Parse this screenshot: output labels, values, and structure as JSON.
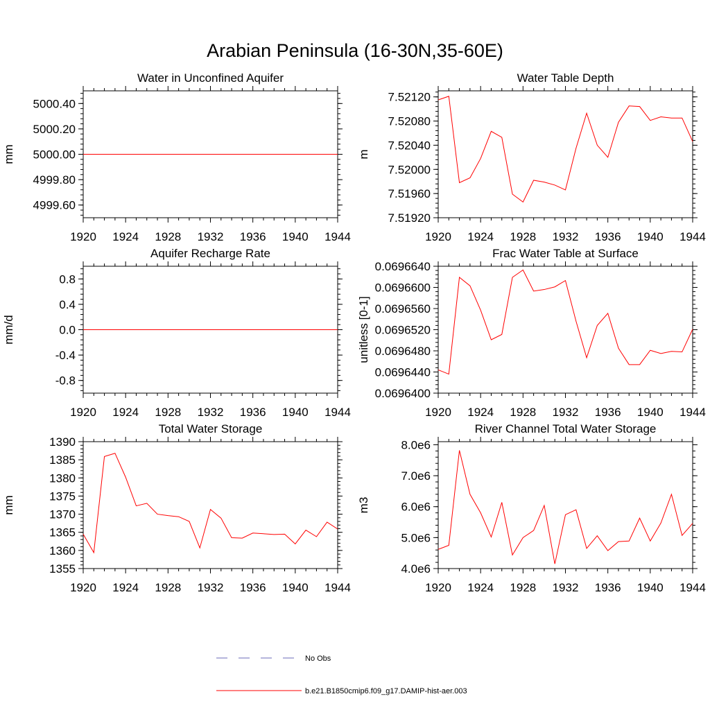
{
  "figure": {
    "title": "Arabian Peninsula (16-30N,35-60E)",
    "series_color": "#ff0000",
    "obs_color": "#6a6ab8"
  },
  "legend": {
    "obs_label": "No Obs",
    "model_label": "b.e21.B1850cmip6.f09_g17.DAMIP-hist-aer.003"
  },
  "chart_data": [
    {
      "type": "line",
      "title": "Water in Unconfined Aquifer",
      "ylabel": "mm",
      "xlim": [
        1920,
        1944
      ],
      "xticks": [
        1920,
        1924,
        1928,
        1932,
        1936,
        1940,
        1944
      ],
      "ylim": [
        4999.5,
        5000.5
      ],
      "yticks": [
        4999.6,
        4999.8,
        5000.0,
        5000.2,
        5000.4
      ],
      "ytick_labels": [
        "4999.60",
        "4999.80",
        "5000.00",
        "5000.20",
        "5000.40"
      ],
      "x": [
        1920,
        1921,
        1922,
        1923,
        1924,
        1925,
        1926,
        1927,
        1928,
        1929,
        1930,
        1931,
        1932,
        1933,
        1934,
        1935,
        1936,
        1937,
        1938,
        1939,
        1940,
        1941,
        1942,
        1943,
        1944
      ],
      "values": [
        5000.0,
        5000.0,
        5000.0,
        5000.0,
        5000.0,
        5000.0,
        5000.0,
        5000.0,
        5000.0,
        5000.0,
        5000.0,
        5000.0,
        5000.0,
        5000.0,
        5000.0,
        5000.0,
        5000.0,
        5000.0,
        5000.0,
        5000.0,
        5000.0,
        5000.0,
        5000.0,
        5000.0,
        5000.0
      ]
    },
    {
      "type": "line",
      "title": "Water Table Depth",
      "ylabel": "m",
      "xlim": [
        1920,
        1944
      ],
      "xticks": [
        1920,
        1924,
        1928,
        1932,
        1936,
        1940,
        1944
      ],
      "ylim": [
        7.5192,
        7.5213
      ],
      "yticks": [
        7.5192,
        7.5196,
        7.52,
        7.5204,
        7.5208,
        7.5212
      ],
      "ytick_labels": [
        "7.51920",
        "7.51960",
        "7.52000",
        "7.52040",
        "7.52080",
        "7.52120"
      ],
      "x": [
        1920,
        1921,
        1922,
        1923,
        1924,
        1925,
        1926,
        1927,
        1928,
        1929,
        1930,
        1931,
        1932,
        1933,
        1934,
        1935,
        1936,
        1937,
        1938,
        1939,
        1940,
        1941,
        1942,
        1943,
        1944
      ],
      "values": [
        7.52115,
        7.52121,
        7.51978,
        7.51986,
        7.52018,
        7.52063,
        7.52053,
        7.51959,
        7.51946,
        7.51982,
        7.51979,
        7.51974,
        7.51966,
        7.52035,
        7.52093,
        7.5204,
        7.5202,
        7.52078,
        7.52105,
        7.52104,
        7.52081,
        7.52087,
        7.52085,
        7.52085,
        7.52046
      ]
    },
    {
      "type": "line",
      "title": "Aquifer Recharge Rate",
      "ylabel": "mm/d",
      "xlim": [
        1920,
        1944
      ],
      "xticks": [
        1920,
        1924,
        1928,
        1932,
        1936,
        1940,
        1944
      ],
      "ylim": [
        -1.0,
        1.0
      ],
      "yticks": [
        -0.8,
        -0.4,
        0.0,
        0.4,
        0.8
      ],
      "ytick_labels": [
        "-0.8",
        "-0.4",
        "0.0",
        "0.4",
        "0.8"
      ],
      "x": [
        1920,
        1921,
        1922,
        1923,
        1924,
        1925,
        1926,
        1927,
        1928,
        1929,
        1930,
        1931,
        1932,
        1933,
        1934,
        1935,
        1936,
        1937,
        1938,
        1939,
        1940,
        1941,
        1942,
        1943,
        1944
      ],
      "values": [
        0,
        0,
        0,
        0,
        0,
        0,
        0,
        0,
        0,
        0,
        0,
        0,
        0,
        0,
        0,
        0,
        0,
        0,
        0,
        0,
        0,
        0,
        0,
        0,
        0
      ]
    },
    {
      "type": "line",
      "title": "Frac Water Table at Surface",
      "ylabel": "unitless [0-1]",
      "xlim": [
        1920,
        1944
      ],
      "xticks": [
        1920,
        1924,
        1928,
        1932,
        1936,
        1940,
        1944
      ],
      "ylim": [
        0.06964,
        0.069664
      ],
      "yticks": [
        0.06964,
        0.069644,
        0.069648,
        0.069652,
        0.069656,
        0.06966,
        0.069664
      ],
      "ytick_labels": [
        "0.0696400",
        "0.0696440",
        "0.0696480",
        "0.0696520",
        "0.0696560",
        "0.0696600",
        "0.0696640"
      ],
      "x": [
        1920,
        1921,
        1922,
        1923,
        1924,
        1925,
        1926,
        1927,
        1928,
        1929,
        1930,
        1931,
        1932,
        1933,
        1934,
        1935,
        1936,
        1937,
        1938,
        1939,
        1940,
        1941,
        1942,
        1943,
        1944
      ],
      "values": [
        0.0696444,
        0.0696436,
        0.0696619,
        0.0696603,
        0.0696557,
        0.0696501,
        0.0696511,
        0.0696619,
        0.0696633,
        0.0696593,
        0.0696596,
        0.0696601,
        0.0696613,
        0.0696536,
        0.0696467,
        0.0696528,
        0.0696551,
        0.0696485,
        0.0696454,
        0.0696454,
        0.0696481,
        0.0696475,
        0.0696479,
        0.0696478,
        0.0696521
      ]
    },
    {
      "type": "line",
      "title": "Total Water Storage",
      "ylabel": "mm",
      "xlim": [
        1920,
        1944
      ],
      "xticks": [
        1920,
        1924,
        1928,
        1932,
        1936,
        1940,
        1944
      ],
      "ylim": [
        1355,
        1390
      ],
      "yticks": [
        1355,
        1360,
        1365,
        1370,
        1375,
        1380,
        1385,
        1390
      ],
      "ytick_labels": [
        "1355",
        "1360",
        "1365",
        "1370",
        "1375",
        "1380",
        "1385",
        "1390"
      ],
      "x": [
        1920,
        1921,
        1922,
        1923,
        1924,
        1925,
        1926,
        1927,
        1928,
        1929,
        1930,
        1931,
        1932,
        1933,
        1934,
        1935,
        1936,
        1937,
        1938,
        1939,
        1940,
        1941,
        1942,
        1943,
        1944
      ],
      "values": [
        1364.5,
        1359.4,
        1385.9,
        1386.8,
        1380.2,
        1372.3,
        1373.0,
        1370.0,
        1369.6,
        1369.3,
        1368.0,
        1360.7,
        1371.3,
        1368.9,
        1363.5,
        1363.4,
        1364.8,
        1364.6,
        1364.4,
        1364.5,
        1361.8,
        1365.6,
        1363.8,
        1367.8,
        1365.9
      ]
    },
    {
      "type": "line",
      "title": "River Channel Total Water Storage",
      "ylabel": "m3",
      "xlim": [
        1920,
        1944
      ],
      "xticks": [
        1920,
        1924,
        1928,
        1932,
        1936,
        1940,
        1944
      ],
      "ylim": [
        4000000,
        8100000
      ],
      "yticks": [
        4000000,
        5000000,
        6000000,
        7000000,
        8000000
      ],
      "ytick_labels": [
        "4.0e6",
        "5.0e6",
        "6.0e6",
        "7.0e6",
        "8.0e6"
      ],
      "x": [
        1920,
        1921,
        1922,
        1923,
        1924,
        1925,
        1926,
        1927,
        1928,
        1929,
        1930,
        1931,
        1932,
        1933,
        1934,
        1935,
        1936,
        1937,
        1938,
        1939,
        1940,
        1941,
        1942,
        1943,
        1944
      ],
      "values": [
        4620000,
        4750000,
        7820000,
        6400000,
        5800000,
        5020000,
        6140000,
        4440000,
        5000000,
        5230000,
        6040000,
        4150000,
        5740000,
        5900000,
        4650000,
        5060000,
        4580000,
        4870000,
        4890000,
        5630000,
        4890000,
        5470000,
        6400000,
        5070000,
        5460000
      ]
    }
  ]
}
